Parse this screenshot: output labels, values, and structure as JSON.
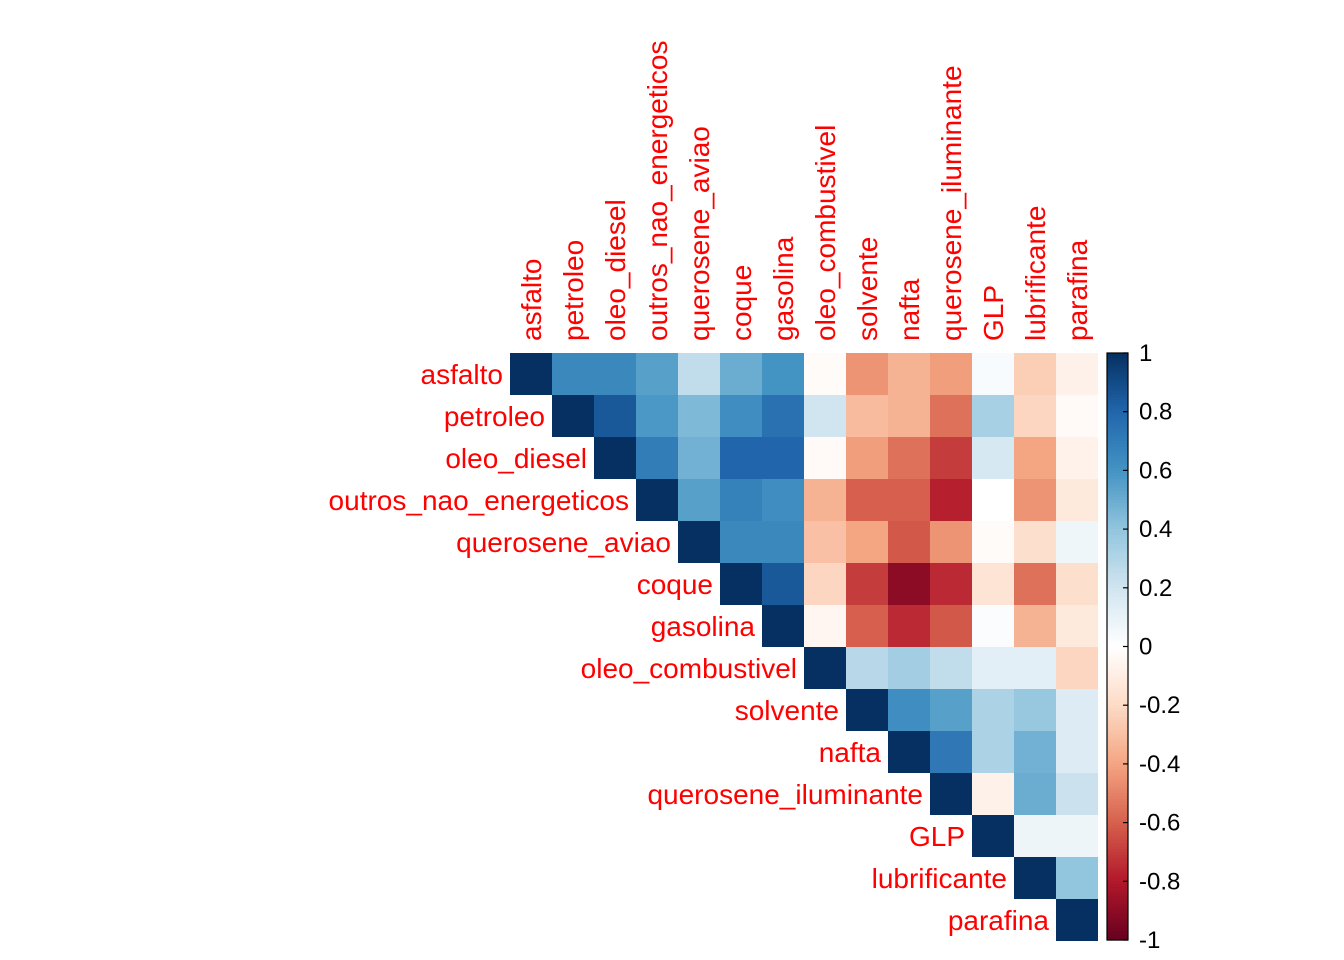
{
  "chart_data": {
    "type": "heatmap",
    "subtype": "correlation-upper",
    "variables": [
      "asfalto",
      "petroleo",
      "oleo_diesel",
      "outros_nao_energeticos",
      "querosene_aviao",
      "coque",
      "gasolina",
      "oleo_combustivel",
      "solvente",
      "nafta",
      "querosene_iluminante",
      "GLP",
      "lubrificante",
      "parafina"
    ],
    "matrix": [
      [
        1,
        0.65,
        0.65,
        0.55,
        0.25,
        0.5,
        0.6,
        -0.02,
        -0.45,
        -0.35,
        -0.42,
        0.03,
        -0.25,
        -0.08
      ],
      [
        null,
        1,
        0.85,
        0.58,
        0.45,
        0.62,
        0.75,
        0.2,
        -0.32,
        -0.35,
        -0.55,
        0.33,
        -0.22,
        -0.03
      ],
      [
        null,
        null,
        1,
        0.7,
        0.48,
        0.8,
        0.8,
        -0.03,
        -0.42,
        -0.55,
        -0.7,
        0.18,
        -0.4,
        -0.07
      ],
      [
        null,
        null,
        null,
        1,
        0.55,
        0.68,
        0.62,
        -0.35,
        -0.6,
        -0.6,
        -0.78,
        0.0,
        -0.45,
        -0.12
      ],
      [
        null,
        null,
        null,
        null,
        1,
        0.65,
        0.65,
        -0.3,
        -0.4,
        -0.62,
        -0.45,
        -0.02,
        -0.18,
        0.07
      ],
      [
        null,
        null,
        null,
        null,
        null,
        1,
        0.85,
        -0.22,
        -0.7,
        -0.9,
        -0.75,
        -0.15,
        -0.55,
        -0.18
      ],
      [
        null,
        null,
        null,
        null,
        null,
        null,
        1,
        -0.05,
        -0.6,
        -0.75,
        -0.62,
        0.02,
        -0.35,
        -0.12
      ],
      [
        null,
        null,
        null,
        null,
        null,
        null,
        null,
        1,
        0.28,
        0.35,
        0.25,
        0.12,
        0.12,
        -0.22
      ],
      [
        null,
        null,
        null,
        null,
        null,
        null,
        null,
        null,
        1,
        0.62,
        0.55,
        0.32,
        0.38,
        0.15
      ],
      [
        null,
        null,
        null,
        null,
        null,
        null,
        null,
        null,
        null,
        1,
        0.72,
        0.32,
        0.48,
        0.15
      ],
      [
        null,
        null,
        null,
        null,
        null,
        null,
        null,
        null,
        null,
        null,
        1,
        -0.08,
        0.5,
        0.22
      ],
      [
        null,
        null,
        null,
        null,
        null,
        null,
        null,
        null,
        null,
        null,
        null,
        1,
        0.08,
        0.08
      ],
      [
        null,
        null,
        null,
        null,
        null,
        null,
        null,
        null,
        null,
        null,
        null,
        null,
        1,
        0.4
      ],
      [
        null,
        null,
        null,
        null,
        null,
        null,
        null,
        null,
        null,
        null,
        null,
        null,
        null,
        1
      ]
    ],
    "color_scale": {
      "min": -1,
      "max": 1,
      "ticks": [
        "1",
        "0.8",
        "0.6",
        "0.4",
        "0.2",
        "0",
        "-0.2",
        "-0.4",
        "-0.6",
        "-0.8",
        "-1"
      ],
      "palette": [
        "#67001F",
        "#B2182B",
        "#D6604D",
        "#F4A582",
        "#FDDBC7",
        "#FFFFFF",
        "#D1E5F0",
        "#92C5DE",
        "#4393C3",
        "#2166AC",
        "#053061"
      ]
    },
    "label_color": "#FF0000",
    "legend_position": "right"
  }
}
